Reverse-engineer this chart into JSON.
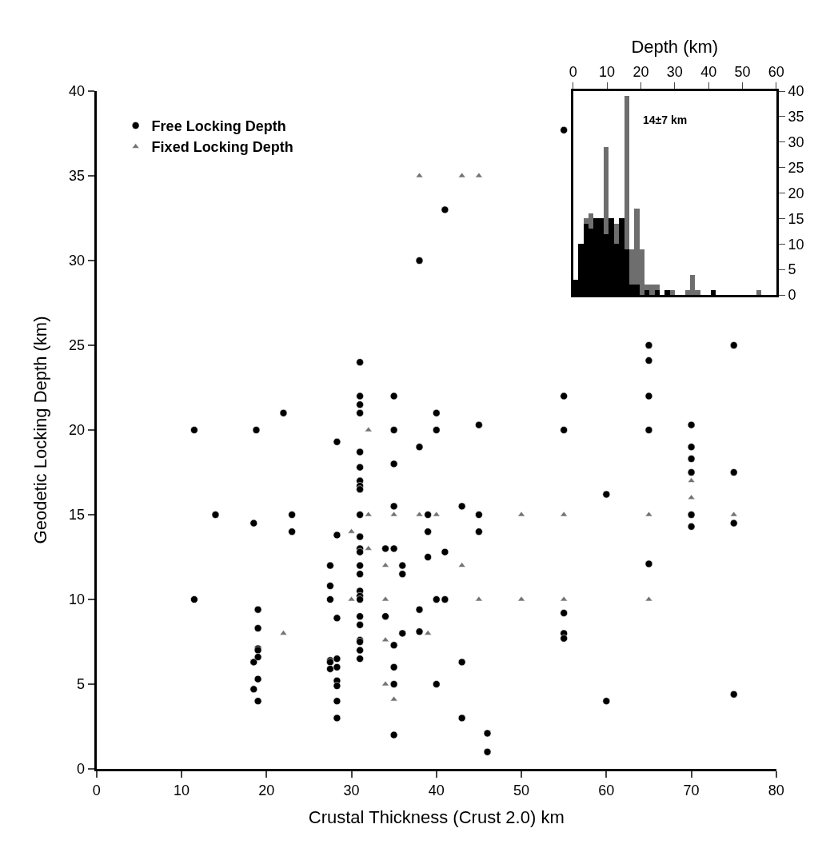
{
  "chart_data": [
    {
      "type": "scatter",
      "xlabel": "Crustal Thickness (Crust 2.0) km",
      "ylabel": "Geodetic Locking Depth (km)",
      "xlim": [
        0,
        80
      ],
      "ylim": [
        0,
        40
      ],
      "xticks": [
        0,
        10,
        20,
        30,
        40,
        50,
        60,
        70,
        80
      ],
      "yticks": [
        0,
        5,
        10,
        15,
        20,
        25,
        30,
        35,
        40
      ],
      "legend": "top left",
      "series": [
        {
          "name": "Free Locking Depth",
          "color": "#000000",
          "marker": "circle",
          "x": [
            11.5,
            11.5,
            14,
            18.5,
            18.5,
            18.5,
            18.8,
            19,
            19,
            19,
            19,
            19,
            19,
            19,
            22,
            23,
            23,
            27.5,
            27.5,
            27.5,
            27.5,
            27.5,
            27.5,
            28.3,
            28.3,
            28.3,
            28.3,
            28.3,
            28.3,
            28.3,
            28.3,
            28.3,
            31,
            31,
            31,
            31,
            31,
            31,
            31,
            31,
            31,
            31,
            31,
            31,
            31,
            31,
            31,
            31,
            31,
            31,
            31,
            31,
            31,
            31,
            31,
            31,
            34,
            34,
            35,
            35,
            35,
            35,
            35,
            35,
            35,
            35,
            35,
            36,
            36,
            36,
            38,
            38,
            38,
            38,
            39,
            39,
            39,
            40,
            40,
            40,
            40,
            41,
            41,
            41,
            43,
            43,
            43,
            45,
            45,
            45,
            46,
            46,
            55,
            55,
            55,
            55,
            55,
            55,
            60,
            60,
            65,
            65,
            65,
            65,
            65,
            70,
            70,
            70,
            70,
            70,
            70,
            75,
            75,
            75,
            75
          ],
          "values": [
            20,
            10,
            15,
            14.5,
            6.3,
            4.7,
            20,
            9.4,
            8.3,
            7.1,
            7.0,
            6.6,
            5.3,
            4.0,
            21,
            15,
            14,
            12,
            10.8,
            10,
            6.4,
            6.3,
            5.9,
            19.3,
            13.8,
            8.9,
            6.5,
            6.0,
            5.2,
            4.9,
            4.0,
            3.0,
            24,
            22,
            21.5,
            21,
            18.7,
            17.8,
            17,
            16.7,
            16.5,
            15,
            13.7,
            13,
            12.8,
            12,
            11.5,
            10.5,
            10.2,
            10,
            9,
            8.5,
            7.6,
            7.5,
            7,
            6.5,
            13,
            9,
            22,
            20,
            18,
            15.5,
            13,
            7.3,
            6,
            5,
            2,
            12,
            11.5,
            8,
            30,
            19,
            9.4,
            8.1,
            15,
            14,
            12.5,
            21,
            20,
            10,
            5,
            33,
            12.8,
            10,
            15.5,
            6.3,
            3,
            20.3,
            15,
            14,
            2.1,
            1,
            37.7,
            22,
            20,
            9.2,
            8,
            7.7,
            16.2,
            4,
            25,
            24.1,
            22,
            20,
            12.1,
            20.3,
            19,
            18.3,
            17.5,
            15,
            14.3,
            25,
            17.5,
            14.5,
            4.4
          ]
        },
        {
          "name": "Fixed Locking Depth",
          "color": "#737373",
          "marker": "triangle",
          "x": [
            22,
            30,
            30,
            32,
            32,
            32,
            34,
            34,
            34,
            34,
            35,
            35,
            38,
            38,
            39,
            40,
            43,
            43,
            45,
            45,
            50,
            50,
            55,
            55,
            65,
            65,
            70,
            70,
            75
          ],
          "values": [
            8,
            14,
            10,
            20,
            15,
            13,
            12,
            10,
            7.6,
            5,
            15,
            4.1,
            35,
            15,
            8,
            15,
            35,
            12,
            35,
            10,
            15,
            10,
            15,
            10,
            15,
            10,
            17,
            16,
            15
          ]
        }
      ]
    },
    {
      "type": "histogram",
      "xlabel": "Depth (km)",
      "xlim": [
        0,
        60
      ],
      "xticks": [
        0,
        10,
        20,
        30,
        40,
        50,
        60
      ],
      "ylim": [
        0,
        40
      ],
      "yticks": [
        0,
        5,
        10,
        15,
        20,
        25,
        30,
        35,
        40
      ],
      "annotations": [
        "14±7 km"
      ],
      "bins": [
        0,
        1.5,
        3,
        4.5,
        6,
        7.5,
        9,
        10.5,
        12,
        13.5,
        15,
        16.5,
        18,
        19.5,
        21,
        22.5,
        24,
        25.5,
        27,
        28.5,
        30,
        31.5,
        33,
        34.5,
        36,
        37.5,
        39,
        40.5,
        42,
        43.5,
        45,
        46.5,
        48,
        49.5,
        51,
        52.5,
        54,
        55.5,
        57,
        58.5,
        60
      ],
      "series": [
        {
          "color": "#6e6e6e",
          "values": [
            null,
            null,
            15,
            16,
            null,
            null,
            29,
            null,
            14,
            null,
            39,
            9,
            17,
            9,
            2,
            2,
            2,
            0,
            null,
            1,
            0,
            0,
            1,
            4,
            1,
            0,
            0,
            0,
            0,
            0,
            0,
            0,
            0,
            0,
            0,
            0,
            1,
            0,
            0,
            0
          ]
        },
        {
          "color": "#000000",
          "values": [
            3,
            10,
            14,
            13,
            15,
            15,
            12,
            15,
            10,
            15,
            9,
            2,
            2,
            0,
            1,
            0,
            1,
            0,
            1,
            0,
            0,
            0,
            0,
            0,
            0,
            0,
            0,
            1,
            0,
            0,
            0,
            0,
            0,
            0,
            0,
            0,
            0,
            0,
            0,
            0
          ]
        }
      ]
    }
  ]
}
